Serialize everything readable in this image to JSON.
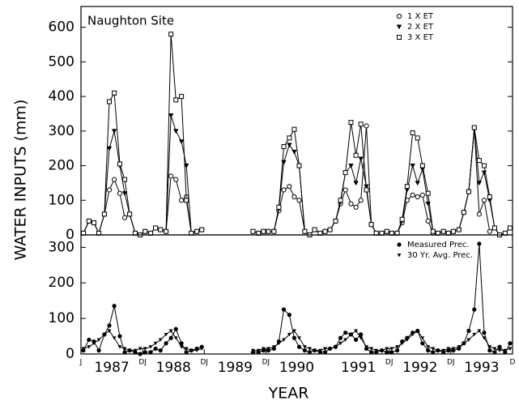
{
  "chart_data": [
    {
      "type": "line",
      "title": "Naughton Site",
      "ylabel": "WATER INPUTS (mm)",
      "x": [
        1987.04,
        1987.13,
        1987.21,
        1987.29,
        1987.38,
        1987.46,
        1987.54,
        1987.63,
        1987.71,
        1987.79,
        1987.88,
        1987.96,
        1988.04,
        1988.13,
        1988.21,
        1988.29,
        1988.38,
        1988.46,
        1988.54,
        1988.63,
        1988.71,
        1988.79,
        1988.88,
        1988.96,
        1989.04,
        1989.13,
        1989.21,
        1989.29,
        1989.38,
        1989.46,
        1989.54,
        1989.63,
        1989.71,
        1989.79,
        1989.88,
        1989.96,
        1990.04,
        1990.13,
        1990.21,
        1990.29,
        1990.38,
        1990.46,
        1990.54,
        1990.63,
        1990.71,
        1990.79,
        1990.88,
        1990.96,
        1991.04,
        1991.13,
        1991.21,
        1991.29,
        1991.38,
        1991.46,
        1991.54,
        1991.63,
        1991.71,
        1991.79,
        1991.88,
        1991.96,
        1992.04,
        1992.13,
        1992.21,
        1992.29,
        1992.38,
        1992.46,
        1992.54,
        1992.63,
        1992.71,
        1992.79,
        1992.88,
        1992.96,
        1993.04,
        1993.13,
        1993.21,
        1993.29,
        1993.38,
        1993.46,
        1993.54,
        1993.63,
        1993.71,
        1993.79,
        1993.88,
        1993.96
      ],
      "xlim": [
        1987,
        1994
      ],
      "ylim": [
        0,
        660
      ],
      "yticks": [
        0,
        100,
        200,
        300,
        400,
        500,
        600
      ],
      "legend": "upper right",
      "series": [
        {
          "name": "1 X ET",
          "color": "#000000",
          "marker": "open-circle",
          "values": [
            5,
            40,
            35,
            5,
            60,
            130,
            160,
            120,
            50,
            60,
            5,
            0,
            10,
            5,
            20,
            15,
            10,
            170,
            160,
            100,
            110,
            5,
            10,
            15,
            null,
            null,
            null,
            null,
            null,
            null,
            null,
            null,
            null,
            10,
            5,
            10,
            10,
            10,
            70,
            130,
            140,
            110,
            100,
            10,
            0,
            15,
            5,
            10,
            15,
            40,
            90,
            130,
            90,
            80,
            100,
            315,
            30,
            5,
            5,
            10,
            5,
            5,
            35,
            100,
            115,
            110,
            115,
            40,
            5,
            5,
            10,
            5,
            10,
            15,
            65,
            125,
            310,
            60,
            100,
            10,
            20,
            0,
            5,
            20
          ]
        },
        {
          "name": "2 X ET",
          "color": "#000000",
          "marker": "filled-triangle",
          "values": [
            5,
            40,
            35,
            5,
            60,
            250,
            300,
            200,
            120,
            60,
            5,
            0,
            10,
            5,
            20,
            15,
            10,
            345,
            300,
            270,
            200,
            5,
            10,
            15,
            null,
            null,
            null,
            null,
            null,
            null,
            null,
            null,
            null,
            10,
            5,
            10,
            10,
            10,
            75,
            210,
            260,
            240,
            200,
            10,
            0,
            15,
            5,
            10,
            15,
            40,
            95,
            180,
            200,
            150,
            220,
            140,
            30,
            5,
            5,
            10,
            5,
            5,
            40,
            130,
            200,
            150,
            190,
            90,
            10,
            5,
            10,
            5,
            10,
            15,
            65,
            125,
            305,
            150,
            180,
            100,
            20,
            0,
            5,
            20
          ]
        },
        {
          "name": "3 X ET",
          "color": "#000000",
          "marker": "open-square",
          "values": [
            5,
            40,
            35,
            5,
            60,
            385,
            410,
            205,
            160,
            60,
            5,
            0,
            10,
            5,
            20,
            15,
            10,
            580,
            390,
            400,
            100,
            5,
            10,
            15,
            null,
            null,
            null,
            null,
            null,
            null,
            null,
            null,
            null,
            10,
            5,
            10,
            10,
            10,
            80,
            255,
            280,
            305,
            200,
            10,
            0,
            15,
            5,
            10,
            15,
            40,
            100,
            180,
            325,
            230,
            320,
            130,
            30,
            5,
            5,
            10,
            5,
            5,
            45,
            140,
            295,
            280,
            200,
            120,
            10,
            5,
            10,
            5,
            10,
            15,
            65,
            125,
            310,
            215,
            200,
            110,
            20,
            0,
            5,
            20
          ]
        }
      ]
    },
    {
      "type": "line",
      "xlabel": "YEAR",
      "x": [
        1987.04,
        1987.13,
        1987.21,
        1987.29,
        1987.38,
        1987.46,
        1987.54,
        1987.63,
        1987.71,
        1987.79,
        1987.88,
        1987.96,
        1988.04,
        1988.13,
        1988.21,
        1988.29,
        1988.38,
        1988.46,
        1988.54,
        1988.63,
        1988.71,
        1988.79,
        1988.88,
        1988.96,
        1989.04,
        1989.13,
        1989.21,
        1989.29,
        1989.38,
        1989.46,
        1989.54,
        1989.63,
        1989.71,
        1989.79,
        1989.88,
        1989.96,
        1990.04,
        1990.13,
        1990.21,
        1990.29,
        1990.38,
        1990.46,
        1990.54,
        1990.63,
        1990.71,
        1990.79,
        1990.88,
        1990.96,
        1991.04,
        1991.13,
        1991.21,
        1991.29,
        1991.38,
        1991.46,
        1991.54,
        1991.63,
        1991.71,
        1991.79,
        1991.88,
        1991.96,
        1992.04,
        1992.13,
        1992.21,
        1992.29,
        1992.38,
        1992.46,
        1992.54,
        1992.63,
        1992.71,
        1992.79,
        1992.88,
        1992.96,
        1993.04,
        1993.13,
        1993.21,
        1993.29,
        1993.38,
        1993.46,
        1993.54,
        1993.63,
        1993.71,
        1993.79,
        1993.88,
        1993.96
      ],
      "xlim": [
        1987,
        1994
      ],
      "ylim": [
        0,
        335
      ],
      "yticks": [
        0,
        100,
        200,
        300
      ],
      "xticks": [
        {
          "value": 1987,
          "label": "J"
        },
        {
          "value": 1987.5,
          "label": "1987"
        },
        {
          "value": 1988,
          "label": "DJ"
        },
        {
          "value": 1988.5,
          "label": "1988"
        },
        {
          "value": 1989,
          "label": "DJ"
        },
        {
          "value": 1989.5,
          "label": "1989"
        },
        {
          "value": 1990,
          "label": "DJ"
        },
        {
          "value": 1990.5,
          "label": "1990"
        },
        {
          "value": 1991.5,
          "label": "1991"
        },
        {
          "value": 1992,
          "label": "DJ"
        },
        {
          "value": 1992.5,
          "label": "1992"
        },
        {
          "value": 1993,
          "label": "DJ"
        },
        {
          "value": 1993.5,
          "label": "1993"
        },
        {
          "value": 1994,
          "label": "D"
        }
      ],
      "legend": "upper right",
      "series": [
        {
          "name": "Measured Prec.",
          "color": "#000000",
          "marker": "filled-circle",
          "values": [
            10,
            40,
            35,
            10,
            55,
            80,
            135,
            50,
            5,
            10,
            5,
            0,
            5,
            5,
            15,
            10,
            30,
            45,
            70,
            30,
            5,
            10,
            15,
            20,
            null,
            null,
            null,
            null,
            null,
            null,
            null,
            null,
            null,
            5,
            5,
            10,
            10,
            15,
            35,
            125,
            110,
            45,
            20,
            10,
            5,
            10,
            5,
            5,
            15,
            20,
            45,
            60,
            55,
            40,
            55,
            15,
            5,
            5,
            10,
            5,
            5,
            10,
            35,
            45,
            60,
            65,
            30,
            10,
            5,
            10,
            5,
            10,
            10,
            15,
            30,
            65,
            125,
            310,
            60,
            10,
            5,
            20,
            5,
            30
          ]
        },
        {
          "name": "30 Yr. Avg. Prec.",
          "color": "#000000",
          "marker": "small-triangle",
          "values": [
            15,
            20,
            30,
            40,
            55,
            65,
            45,
            20,
            15,
            10,
            10,
            15,
            15,
            20,
            30,
            40,
            55,
            65,
            45,
            20,
            15,
            10,
            10,
            15,
            null,
            null,
            null,
            null,
            null,
            null,
            null,
            null,
            null,
            10,
            10,
            15,
            15,
            20,
            30,
            40,
            55,
            65,
            45,
            20,
            15,
            10,
            10,
            15,
            15,
            20,
            30,
            40,
            55,
            65,
            45,
            20,
            15,
            10,
            10,
            15,
            15,
            20,
            30,
            40,
            55,
            65,
            45,
            20,
            15,
            10,
            10,
            15,
            15,
            20,
            30,
            40,
            55,
            65,
            45,
            20,
            15,
            10,
            10,
            15
          ]
        }
      ]
    }
  ]
}
